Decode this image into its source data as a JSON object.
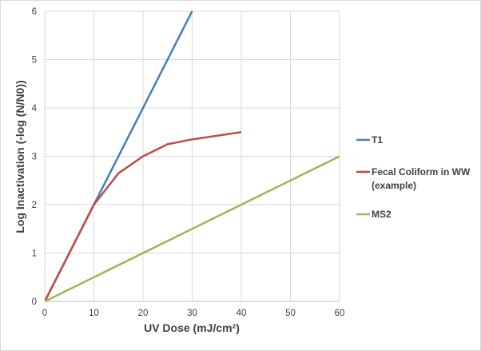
{
  "chart_data": {
    "type": "line",
    "title": "",
    "xlabel": "UV Dose (mJ/cm²)",
    "ylabel": "Log Inactivation (-log (N/N0))",
    "xlim": [
      0,
      60
    ],
    "ylim": [
      0,
      6
    ],
    "xticks": [
      0,
      10,
      20,
      30,
      40,
      50,
      60
    ],
    "yticks": [
      0,
      1,
      2,
      3,
      4,
      5,
      6
    ],
    "grid": true,
    "legend_position": "right",
    "series": [
      {
        "name": "T1",
        "color": "#4a7ebb",
        "x": [
          0,
          30
        ],
        "y": [
          0,
          6
        ]
      },
      {
        "name": "Fecal Coliform in WW",
        "name_line2": "(example)",
        "color": "#be4b48",
        "x": [
          0,
          10,
          15,
          20,
          25,
          30,
          40
        ],
        "y": [
          0,
          2,
          2.65,
          3,
          3.25,
          3.35,
          3.5
        ]
      },
      {
        "name": "MS2",
        "color": "#98b954",
        "x": [
          0,
          60
        ],
        "y": [
          0,
          3
        ]
      }
    ]
  }
}
